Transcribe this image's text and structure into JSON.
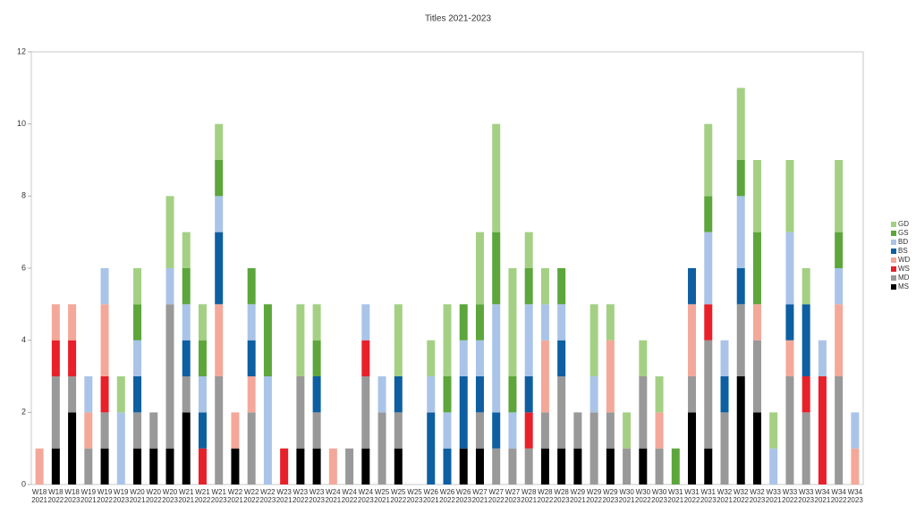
{
  "chart_data": {
    "type": "stacked-bar",
    "title": "Titles 2021-2023",
    "categories": [
      "W18 2021",
      "W18 2022",
      "W18 2023",
      "W19 2021",
      "W19 2022",
      "W19 2023",
      "W20 2021",
      "W20 2022",
      "W20 2023",
      "W21 2021",
      "W21 2022",
      "W21 2023",
      "W22 2021",
      "W22 2022",
      "W22 2023",
      "W23 2021",
      "W23 2022",
      "W23 2023",
      "W24 2021",
      "W24 2022",
      "W24 2023",
      "W25 2021",
      "W25 2022",
      "W25 2023",
      "W26 2021",
      "W26 2022",
      "W26 2023",
      "W27 2021",
      "W27 2022",
      "W27 2023",
      "W28 2021",
      "W28 2022",
      "W28 2023",
      "W29 2021",
      "W29 2022",
      "W29 2023",
      "W30 2021",
      "W30 2022",
      "W30 2023",
      "W31 2021",
      "W31 2022",
      "W31 2023",
      "W32 2021",
      "W32 2022",
      "W32 2023",
      "W33 2021",
      "W33 2022",
      "W33 2023",
      "W34 2021",
      "W34 2022",
      "W34 2023"
    ],
    "series": [
      {
        "name": "MS",
        "color": "#000000",
        "values": [
          0,
          1,
          2,
          0,
          1,
          0,
          1,
          1,
          1,
          2,
          0,
          0,
          1,
          0,
          0,
          0,
          1,
          1,
          0,
          0,
          1,
          0,
          1,
          0,
          0,
          0,
          1,
          1,
          0,
          0,
          0,
          1,
          1,
          1,
          0,
          1,
          0,
          1,
          0,
          0,
          2,
          1,
          0,
          3,
          2,
          0,
          0,
          0,
          0,
          0,
          0
        ]
      },
      {
        "name": "MD",
        "color": "#999999",
        "values": [
          0,
          2,
          1,
          1,
          1,
          0,
          1,
          1,
          4,
          1,
          0,
          3,
          0,
          2,
          0,
          0,
          2,
          1,
          0,
          1,
          2,
          2,
          1,
          0,
          0,
          0,
          0,
          1,
          1,
          1,
          1,
          1,
          2,
          1,
          2,
          1,
          1,
          2,
          1,
          0,
          1,
          3,
          2,
          2,
          2,
          0,
          3,
          2,
          0,
          3,
          0
        ]
      },
      {
        "name": "WS",
        "color": "#e8202a",
        "values": [
          0,
          1,
          1,
          0,
          1,
          0,
          0,
          0,
          0,
          0,
          1,
          0,
          0,
          0,
          0,
          1,
          0,
          0,
          0,
          0,
          1,
          0,
          0,
          0,
          0,
          0,
          0,
          0,
          0,
          0,
          1,
          0,
          0,
          0,
          0,
          0,
          0,
          0,
          0,
          0,
          0,
          1,
          0,
          0,
          0,
          0,
          0,
          1,
          3,
          0,
          0
        ]
      },
      {
        "name": "WD",
        "color": "#f4a89a",
        "values": [
          1,
          1,
          1,
          1,
          2,
          0,
          0,
          0,
          0,
          0,
          0,
          2,
          1,
          1,
          0,
          0,
          0,
          0,
          1,
          0,
          0,
          0,
          0,
          0,
          0,
          0,
          0,
          0,
          0,
          0,
          0,
          2,
          0,
          0,
          0,
          2,
          0,
          0,
          1,
          0,
          2,
          0,
          0,
          0,
          1,
          0,
          1,
          0,
          0,
          2,
          1
        ]
      },
      {
        "name": "BS",
        "color": "#0d5fa1",
        "values": [
          0,
          0,
          0,
          0,
          0,
          0,
          1,
          0,
          0,
          1,
          1,
          2,
          0,
          1,
          0,
          0,
          0,
          1,
          0,
          0,
          0,
          0,
          1,
          0,
          2,
          1,
          2,
          1,
          1,
          0,
          1,
          0,
          1,
          0,
          0,
          0,
          0,
          0,
          0,
          0,
          1,
          0,
          1,
          1,
          0,
          0,
          1,
          2,
          0,
          0,
          0
        ]
      },
      {
        "name": "BD",
        "color": "#a9c4e8",
        "values": [
          0,
          0,
          0,
          1,
          1,
          2,
          1,
          0,
          1,
          1,
          1,
          1,
          0,
          1,
          3,
          0,
          0,
          0,
          0,
          0,
          1,
          1,
          0,
          0,
          1,
          1,
          1,
          1,
          3,
          1,
          2,
          1,
          1,
          0,
          1,
          0,
          0,
          0,
          0,
          0,
          0,
          2,
          1,
          2,
          0,
          1,
          2,
          0,
          1,
          1,
          1
        ]
      },
      {
        "name": "GS",
        "color": "#5ca63c",
        "values": [
          0,
          0,
          0,
          0,
          0,
          0,
          1,
          0,
          0,
          1,
          1,
          1,
          0,
          1,
          2,
          0,
          0,
          1,
          0,
          0,
          0,
          0,
          0,
          0,
          0,
          1,
          1,
          1,
          2,
          1,
          1,
          0,
          1,
          0,
          0,
          0,
          0,
          0,
          0,
          1,
          0,
          1,
          0,
          1,
          2,
          0,
          0,
          0,
          0,
          1,
          0
        ]
      },
      {
        "name": "GD",
        "color": "#a4d084",
        "values": [
          0,
          0,
          0,
          0,
          0,
          1,
          1,
          0,
          2,
          1,
          1,
          1,
          0,
          0,
          0,
          0,
          2,
          1,
          0,
          0,
          0,
          0,
          2,
          0,
          1,
          2,
          0,
          2,
          3,
          3,
          1,
          1,
          0,
          0,
          2,
          1,
          1,
          1,
          1,
          0,
          0,
          2,
          0,
          2,
          2,
          1,
          2,
          1,
          0,
          2,
          0
        ]
      }
    ],
    "ylim": [
      0,
      12
    ],
    "yticks": [
      0,
      2,
      4,
      6,
      8,
      10,
      12
    ],
    "grid": false,
    "legend": "right"
  }
}
